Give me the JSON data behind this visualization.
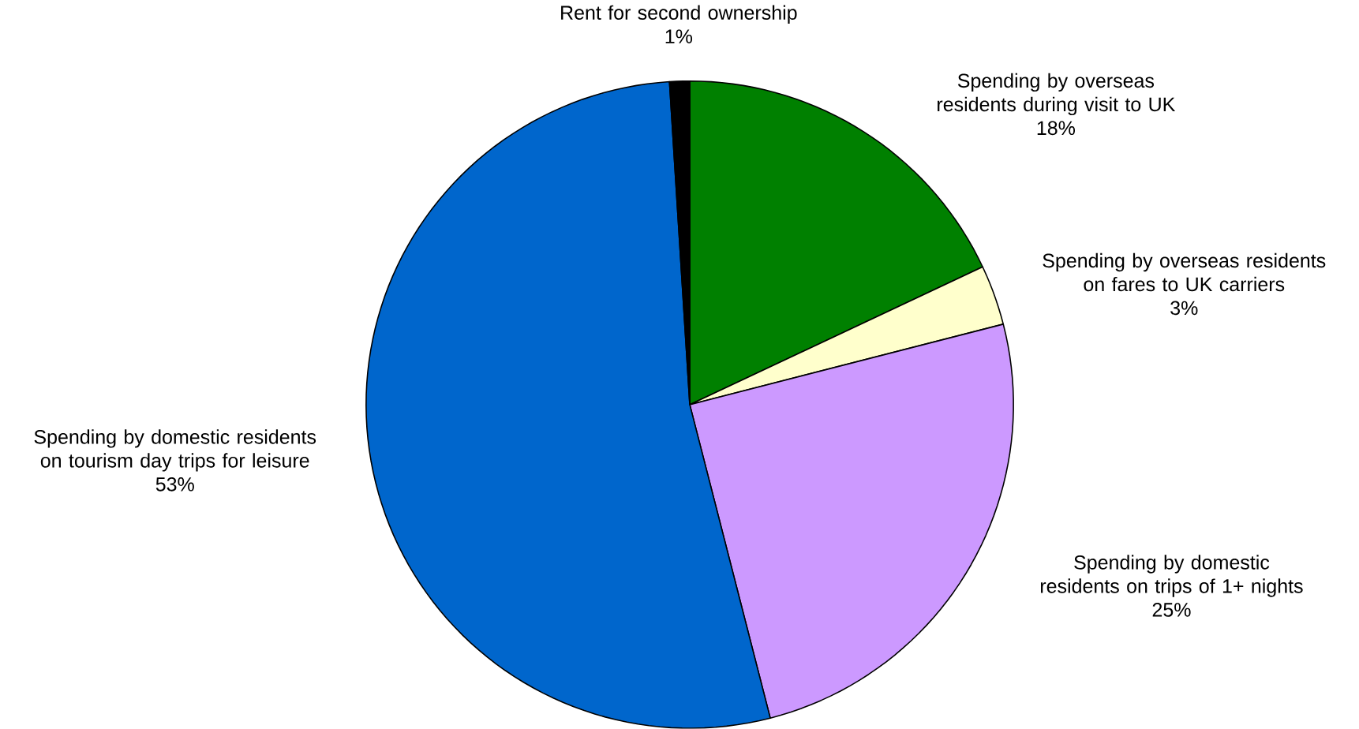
{
  "chart_data": {
    "type": "pie",
    "categories": [
      "Spending by overseas residents during visit to UK",
      "Spending by overseas residents on fares to UK carriers",
      "Spending by domestic residents on trips of 1+ nights",
      "Spending by domestic residents on tourism day trips for leisure",
      "Rent for second ownership"
    ],
    "values": [
      18,
      3,
      25,
      53,
      1
    ],
    "value_labels": [
      "18%",
      "3%",
      "25%",
      "53%",
      "1%"
    ],
    "colors": [
      "#008000",
      "#ffffcc",
      "#cc99ff",
      "#0066cc",
      "#000000"
    ]
  }
}
